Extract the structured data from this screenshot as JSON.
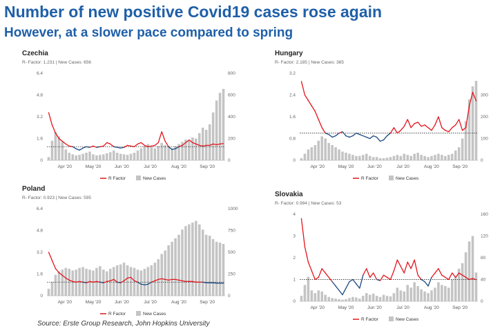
{
  "header": {
    "title": "Number of new positive Covid19 cases rose again",
    "subtitle": "However, at a slower pace compared to spring"
  },
  "footer": {
    "source": "Source: Erste Group Research, John Hopkins University"
  },
  "legend": {
    "r_label": "R Factor",
    "cases_label": "New Cases"
  },
  "colors": {
    "title": "#1f5fa8",
    "r_above": "#e3141b",
    "r_below": "#1a4a80",
    "bars": "#c4c4c4",
    "threshold": "#444444"
  },
  "chart_data": [
    {
      "type": "bar+line",
      "title": "Czechia",
      "info": "R- Factor: 1.231 | New Cases: 656",
      "x_ticks": [
        "Apr '20",
        "May '20",
        "Jun '20",
        "Jul '20",
        "Aug '20",
        "Sep '20"
      ],
      "y_left_ticks": [
        "0",
        "1.6",
        "3.2",
        "4.8",
        "6.4"
      ],
      "y_left_range": [
        0,
        6.4
      ],
      "y_right_ticks": [
        "0",
        "200",
        "400",
        "600",
        "800"
      ],
      "y_right_range": [
        0,
        800
      ],
      "threshold": 1,
      "r_factor": [
        3.5,
        2.6,
        2.0,
        1.6,
        1.4,
        1.2,
        1.05,
        1.0,
        0.85,
        0.75,
        0.9,
        1.0,
        0.95,
        1.05,
        0.95,
        1.0,
        1.05,
        1.3,
        1.2,
        1.0,
        0.95,
        0.9,
        0.95,
        1.1,
        1.05,
        1.0,
        1.2,
        1.3,
        1.1,
        1.0,
        1.05,
        1.1,
        1.3,
        2.1,
        1.4,
        1.0,
        0.8,
        0.85,
        1.0,
        1.1,
        1.3,
        1.5,
        1.3,
        1.2,
        1.1,
        1.05,
        1.1,
        1.1,
        1.2,
        1.15,
        1.2,
        1.23
      ],
      "new_cases": [
        30,
        180,
        260,
        220,
        170,
        100,
        70,
        55,
        45,
        50,
        60,
        70,
        80,
        55,
        45,
        50,
        55,
        65,
        75,
        90,
        70,
        60,
        55,
        50,
        60,
        70,
        90,
        110,
        130,
        150,
        120,
        110,
        130,
        160,
        140,
        120,
        110,
        130,
        150,
        170,
        190,
        180,
        210,
        200,
        250,
        300,
        280,
        330,
        440,
        550,
        620,
        656
      ]
    },
    {
      "type": "bar+line",
      "title": "Hungary",
      "info": "R- Factor: 2.185 | New Cases: 365",
      "x_ticks": [
        "Apr '20",
        "May '20",
        "Jun '20",
        "Jul '20",
        "Aug '20",
        "Sep '20"
      ],
      "y_left_ticks": [
        "0",
        "0.8",
        "1.6",
        "2.4",
        "3.2"
      ],
      "y_left_range": [
        0,
        3.2
      ],
      "y_right_ticks": [
        "0",
        "100",
        "200",
        "300"
      ],
      "y_right_range": [
        0,
        400
      ],
      "threshold": 1,
      "r_factor": [
        2.9,
        2.4,
        2.2,
        2.0,
        1.8,
        1.5,
        1.2,
        1.0,
        0.95,
        0.85,
        0.9,
        1.0,
        1.05,
        0.9,
        0.85,
        0.9,
        1.0,
        0.95,
        0.9,
        0.85,
        0.8,
        0.9,
        0.85,
        0.7,
        0.75,
        0.9,
        1.0,
        1.2,
        1.0,
        1.1,
        1.25,
        1.5,
        1.2,
        1.35,
        1.4,
        1.25,
        1.3,
        1.2,
        1.1,
        1.3,
        1.6,
        1.2,
        1.1,
        1.05,
        1.2,
        1.3,
        1.5,
        1.1,
        1.2,
        2.0,
        2.5,
        2.185
      ],
      "new_cases": [
        10,
        30,
        50,
        60,
        70,
        90,
        110,
        100,
        80,
        70,
        60,
        50,
        40,
        35,
        30,
        25,
        20,
        20,
        25,
        30,
        20,
        15,
        15,
        10,
        10,
        12,
        15,
        20,
        25,
        20,
        30,
        25,
        20,
        30,
        35,
        25,
        20,
        15,
        20,
        25,
        30,
        25,
        20,
        25,
        30,
        45,
        60,
        100,
        180,
        280,
        340,
        365
      ]
    },
    {
      "type": "bar+line",
      "title": "Poland",
      "info": "R- Factor: 0.923 | New Cases: 595",
      "x_ticks": [
        "Apr '20",
        "May '20",
        "Jun '20",
        "Jul '20",
        "Aug '20",
        "Sep '20"
      ],
      "y_left_ticks": [
        "0",
        "1.6",
        "3.2",
        "4.8",
        "6.4"
      ],
      "y_left_range": [
        0,
        6.4
      ],
      "y_right_ticks": [
        "0",
        "250",
        "500",
        "750",
        "1000"
      ],
      "y_right_range": [
        0,
        1000
      ],
      "threshold": 1,
      "r_factor": [
        3.2,
        2.6,
        2.0,
        1.7,
        1.5,
        1.3,
        1.15,
        1.05,
        1.0,
        1.05,
        1.0,
        0.95,
        1.05,
        1.0,
        1.05,
        1.0,
        0.95,
        1.05,
        1.1,
        1.2,
        1.0,
        0.95,
        1.1,
        1.3,
        1.35,
        1.1,
        1.0,
        0.85,
        0.8,
        0.85,
        1.0,
        1.1,
        1.2,
        1.25,
        1.2,
        1.15,
        1.2,
        1.2,
        1.15,
        1.1,
        1.05,
        1.05,
        1.05,
        1.0,
        1.0,
        1.0,
        0.95,
        0.95,
        0.95,
        0.93,
        0.92,
        0.923
      ],
      "new_cases": [
        80,
        160,
        240,
        280,
        300,
        320,
        310,
        290,
        300,
        320,
        330,
        310,
        300,
        290,
        320,
        340,
        300,
        280,
        310,
        330,
        350,
        360,
        380,
        350,
        330,
        320,
        300,
        290,
        310,
        330,
        350,
        380,
        420,
        480,
        520,
        580,
        620,
        660,
        700,
        760,
        800,
        820,
        840,
        860,
        820,
        760,
        700,
        690,
        650,
        620,
        610,
        595
      ]
    },
    {
      "type": "bar+line",
      "title": "Slovakia",
      "info": "R- Factor: 0.994 | New Cases: 53",
      "x_ticks": [
        "Apr '20",
        "May '20",
        "Jun '20",
        "Jul '20",
        "Aug '20",
        "Sep '20"
      ],
      "y_left_ticks": [
        "0",
        "1",
        "2",
        "3",
        "4"
      ],
      "y_left_range": [
        0,
        4
      ],
      "y_right_ticks": [
        "0",
        "40",
        "80",
        "120",
        "160"
      ],
      "y_right_range": [
        0,
        160
      ],
      "threshold": 1,
      "r_factor": [
        3.8,
        2.5,
        1.8,
        1.4,
        1.0,
        1.1,
        1.5,
        1.3,
        1.1,
        0.9,
        0.7,
        0.5,
        0.3,
        0.6,
        0.9,
        1.0,
        0.8,
        0.6,
        1.2,
        1.5,
        1.1,
        1.3,
        1.0,
        0.95,
        1.2,
        1.1,
        1.0,
        1.4,
        1.9,
        1.6,
        1.3,
        1.8,
        1.5,
        1.9,
        1.2,
        1.0,
        0.9,
        0.7,
        1.1,
        1.3,
        1.5,
        1.2,
        1.1,
        1.0,
        1.3,
        1.1,
        1.3,
        1.2,
        1.1,
        1.0,
        1.05,
        0.994
      ],
      "new_cases": [
        10,
        30,
        45,
        20,
        15,
        20,
        18,
        12,
        8,
        6,
        5,
        4,
        3,
        4,
        6,
        8,
        7,
        5,
        10,
        15,
        12,
        14,
        10,
        8,
        12,
        10,
        9,
        15,
        25,
        20,
        18,
        30,
        25,
        35,
        28,
        22,
        18,
        15,
        20,
        25,
        35,
        30,
        28,
        25,
        40,
        45,
        60,
        70,
        90,
        110,
        120,
        53
      ]
    }
  ]
}
